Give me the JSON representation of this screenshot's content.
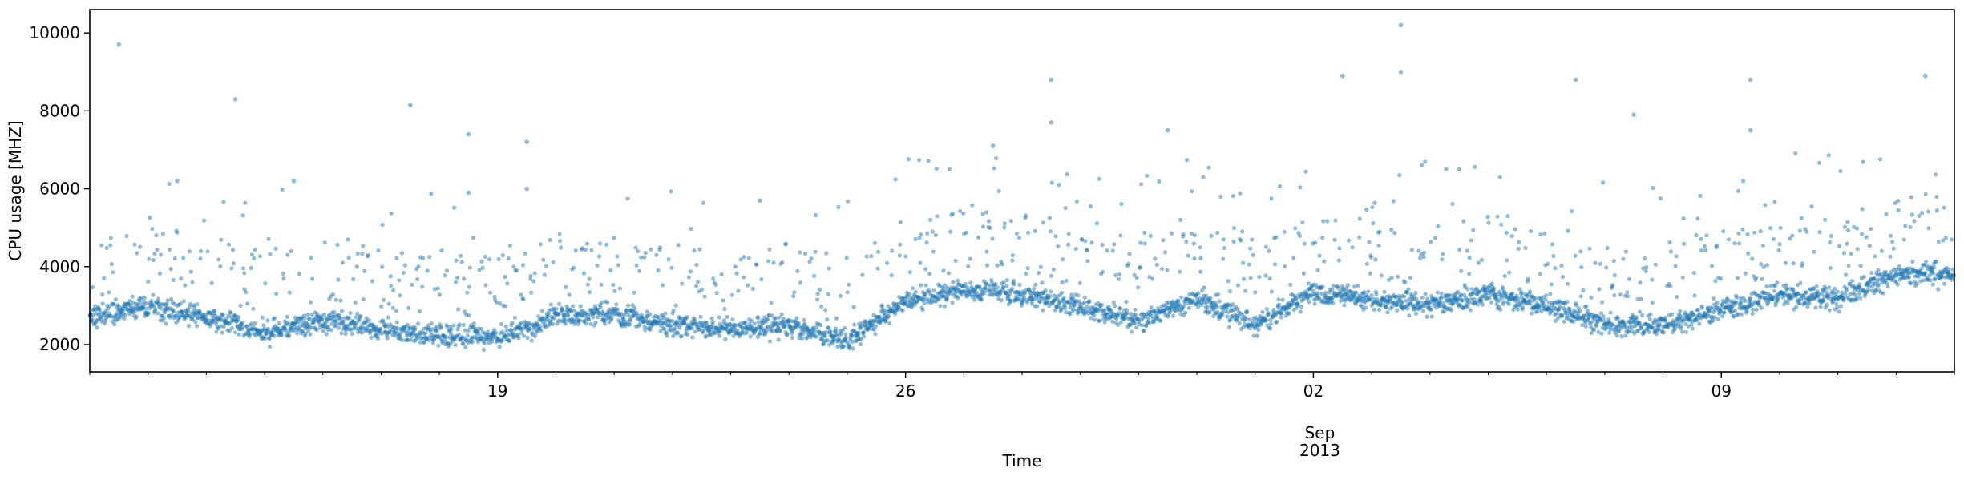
{
  "chart_data": {
    "type": "scatter",
    "title": "",
    "xlabel": "Time",
    "ylabel": "CPU usage [MHZ]",
    "xlim": [
      "2013-08-12",
      "2013-09-13"
    ],
    "ylim": [
      1300,
      10600
    ],
    "y_ticks": [
      2000,
      4000,
      6000,
      8000,
      10000
    ],
    "x_ticks": [
      {
        "date": "2013-08-19",
        "label": "19"
      },
      {
        "date": "2013-08-26",
        "label": "26"
      },
      {
        "date": "2013-09-02",
        "label": "02",
        "sublabel": "Sep\n2013"
      },
      {
        "date": "2013-09-09",
        "label": "09"
      }
    ],
    "marker_color": "#1f77b4",
    "marker_alpha": 0.5,
    "grid": false,
    "legend": "none",
    "baseline_profile": [
      {
        "date": "2013-08-12",
        "cpu": 2700
      },
      {
        "date": "2013-08-13",
        "cpu": 3000
      },
      {
        "date": "2013-08-14",
        "cpu": 2700
      },
      {
        "date": "2013-08-15",
        "cpu": 2300
      },
      {
        "date": "2013-08-16",
        "cpu": 2600
      },
      {
        "date": "2013-08-17",
        "cpu": 2400
      },
      {
        "date": "2013-08-18",
        "cpu": 2250
      },
      {
        "date": "2013-08-19",
        "cpu": 2200
      },
      {
        "date": "2013-08-20",
        "cpu": 2700
      },
      {
        "date": "2013-08-21",
        "cpu": 2800
      },
      {
        "date": "2013-08-22",
        "cpu": 2500
      },
      {
        "date": "2013-08-23",
        "cpu": 2400
      },
      {
        "date": "2013-08-24",
        "cpu": 2500
      },
      {
        "date": "2013-08-25",
        "cpu": 2100
      },
      {
        "date": "2013-08-26",
        "cpu": 3100
      },
      {
        "date": "2013-08-27",
        "cpu": 3400
      },
      {
        "date": "2013-08-28",
        "cpu": 3300
      },
      {
        "date": "2013-08-29",
        "cpu": 3000
      },
      {
        "date": "2013-08-30",
        "cpu": 2600
      },
      {
        "date": "2013-08-31",
        "cpu": 3200
      },
      {
        "date": "2013-09-01",
        "cpu": 2500
      },
      {
        "date": "2013-09-02",
        "cpu": 3300
      },
      {
        "date": "2013-09-03",
        "cpu": 3200
      },
      {
        "date": "2013-09-04",
        "cpu": 3000
      },
      {
        "date": "2013-09-05",
        "cpu": 3300
      },
      {
        "date": "2013-09-06",
        "cpu": 3000
      },
      {
        "date": "2013-09-07",
        "cpu": 2500
      },
      {
        "date": "2013-09-08",
        "cpu": 2500
      },
      {
        "date": "2013-09-09",
        "cpu": 2900
      },
      {
        "date": "2013-09-10",
        "cpu": 3300
      },
      {
        "date": "2013-09-11",
        "cpu": 3200
      },
      {
        "date": "2013-09-12",
        "cpu": 3800
      }
    ],
    "outliers": [
      {
        "date": "2013-08-12",
        "cpu": 9700
      },
      {
        "date": "2013-08-13",
        "cpu": 6200
      },
      {
        "date": "2013-08-14",
        "cpu": 8300
      },
      {
        "date": "2013-08-15",
        "cpu": 6200
      },
      {
        "date": "2013-08-17",
        "cpu": 8150
      },
      {
        "date": "2013-08-18",
        "cpu": 7400
      },
      {
        "date": "2013-08-18",
        "cpu": 5900
      },
      {
        "date": "2013-08-19",
        "cpu": 7200
      },
      {
        "date": "2013-08-19",
        "cpu": 6000
      },
      {
        "date": "2013-08-23",
        "cpu": 5700
      },
      {
        "date": "2013-08-27",
        "cpu": 7100
      },
      {
        "date": "2013-08-28",
        "cpu": 8800
      },
      {
        "date": "2013-08-28",
        "cpu": 7700
      },
      {
        "date": "2013-08-30",
        "cpu": 7500
      },
      {
        "date": "2013-09-02",
        "cpu": 8900
      },
      {
        "date": "2013-09-03",
        "cpu": 10200
      },
      {
        "date": "2013-09-03",
        "cpu": 9000
      },
      {
        "date": "2013-09-04",
        "cpu": 6500
      },
      {
        "date": "2013-09-06",
        "cpu": 8800
      },
      {
        "date": "2013-09-07",
        "cpu": 7900
      },
      {
        "date": "2013-09-09",
        "cpu": 8800
      },
      {
        "date": "2013-09-09",
        "cpu": 7500
      },
      {
        "date": "2013-09-12",
        "cpu": 8900
      }
    ]
  }
}
